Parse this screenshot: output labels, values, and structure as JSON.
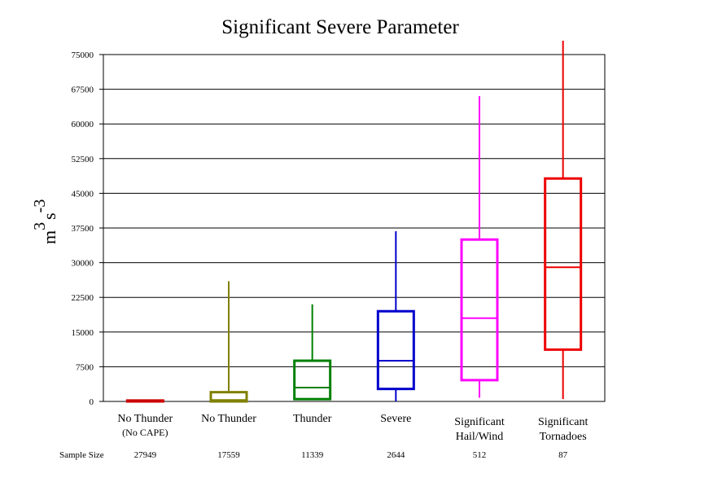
{
  "chart_data": {
    "type": "box",
    "title": "Significant Severe Parameter",
    "ylabel": {
      "base": "m",
      "exp1": "3",
      "mid": "s",
      "exp2": "-3"
    },
    "ylim": [
      0,
      75000
    ],
    "y_ticks": [
      "0",
      "7500",
      "15000",
      "22500",
      "30000",
      "37500",
      "45000",
      "52500",
      "60000",
      "67500",
      "75000"
    ],
    "grid": true,
    "sample_size_label": "Sample Size",
    "categories": [
      {
        "label_lines": [
          "No Thunder"
        ],
        "sub_label": "(No CAPE)",
        "color": "#cc0000",
        "sample_size": "27949",
        "min": 0,
        "q1": 0,
        "median": 0,
        "q3": 200,
        "max": 300
      },
      {
        "label_lines": [
          "No Thunder"
        ],
        "sub_label": "",
        "color": "#808000",
        "sample_size": "17559",
        "min": 0,
        "q1": 0,
        "median": 300,
        "q3": 2000,
        "max": 26000
      },
      {
        "label_lines": [
          "Thunder"
        ],
        "sub_label": "",
        "color": "#008000",
        "sample_size": "11339",
        "min": 500,
        "q1": 500,
        "median": 3000,
        "q3": 8800,
        "max": 21000
      },
      {
        "label_lines": [
          "Severe"
        ],
        "sub_label": "",
        "color": "#0000cc",
        "sample_size": "2644",
        "min": 0,
        "q1": 2700,
        "median": 8800,
        "q3": 19500,
        "max": 36800
      },
      {
        "label_lines": [
          "Significant",
          "Hail/Wind"
        ],
        "sub_label": "",
        "color": "#ff00ff",
        "sample_size": "512",
        "min": 800,
        "q1": 4600,
        "median": 18000,
        "q3": 35000,
        "max": 66000
      },
      {
        "label_lines": [
          "Significant",
          "Tornadoes"
        ],
        "sub_label": "",
        "color": "#ee0000",
        "sample_size": "87",
        "min": 500,
        "q1": 11200,
        "median": 29000,
        "q3": 48200,
        "max": 78000
      }
    ]
  }
}
